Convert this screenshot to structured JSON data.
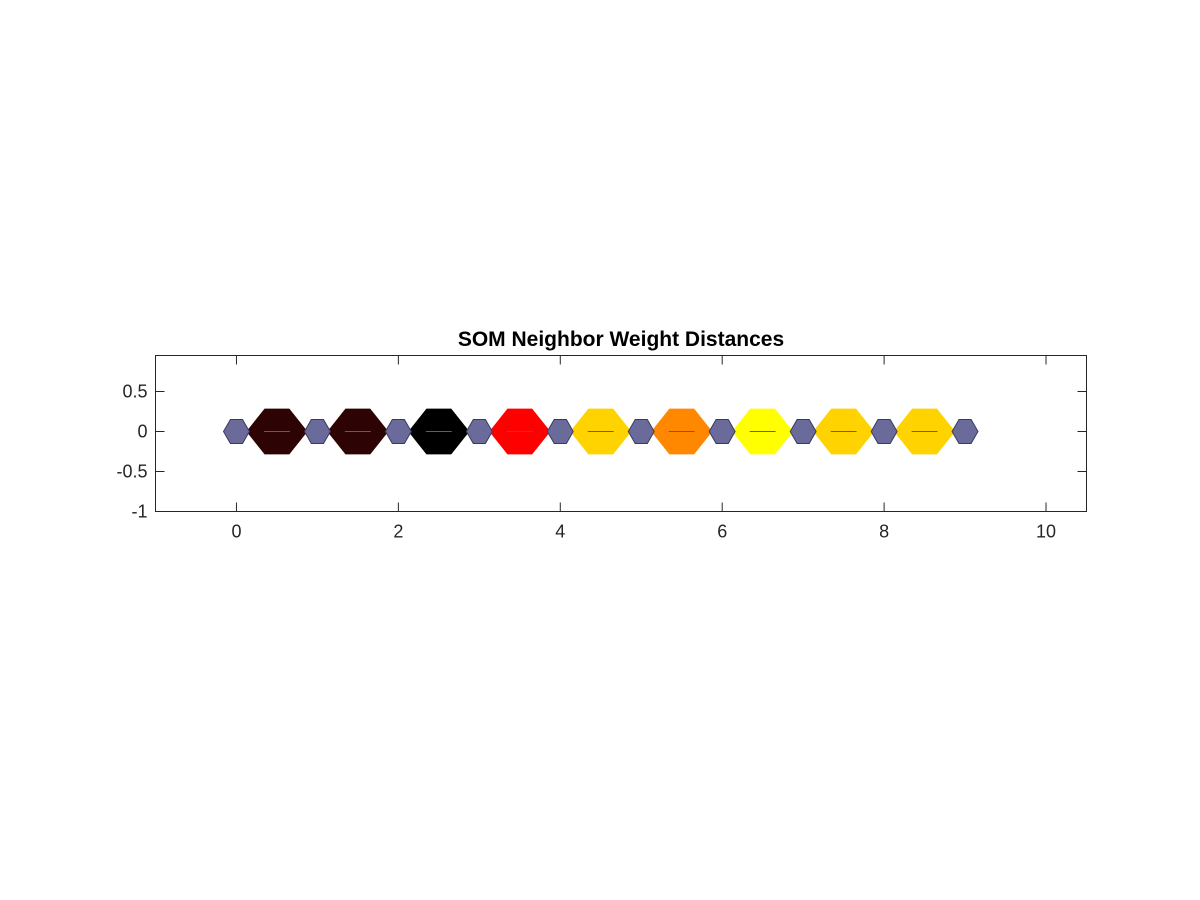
{
  "chart_data": {
    "type": "heatmap",
    "title": "SOM Neighbor Weight Distances",
    "xlabel": "",
    "ylabel": "",
    "xlim": [
      -1,
      10.5
    ],
    "ylim": [
      -1,
      0.95
    ],
    "x_ticks": [
      0,
      2,
      4,
      6,
      8,
      10
    ],
    "x_tick_labels": [
      "0",
      "2",
      "4",
      "6",
      "8",
      "10"
    ],
    "y_ticks": [
      0.5,
      0,
      -0.5,
      -1
    ],
    "y_tick_labels": [
      "0.5",
      "0",
      "-0.5",
      "-1"
    ],
    "grid": false,
    "neurons": {
      "positions": [
        [
          0,
          0
        ],
        [
          1,
          0
        ],
        [
          2,
          0
        ],
        [
          3,
          0
        ],
        [
          4,
          0
        ],
        [
          5,
          0
        ],
        [
          6,
          0
        ],
        [
          7,
          0
        ],
        [
          8,
          0
        ],
        [
          9,
          0
        ]
      ],
      "color": "#6b6b9b",
      "edge_color": "#3a3a5e"
    },
    "distance_cells": {
      "positions": [
        [
          0.5,
          0
        ],
        [
          1.5,
          0
        ],
        [
          2.5,
          0
        ],
        [
          3.5,
          0
        ],
        [
          4.5,
          0
        ],
        [
          5.5,
          0
        ],
        [
          6.5,
          0
        ],
        [
          7.5,
          0
        ],
        [
          8.5,
          0
        ]
      ],
      "colors": [
        "#2e0303",
        "#2e0303",
        "#000000",
        "#ff0000",
        "#ffd300",
        "#ff8800",
        "#ffff00",
        "#ffd300",
        "#ffd300"
      ],
      "line_color": "#e8261c"
    }
  }
}
